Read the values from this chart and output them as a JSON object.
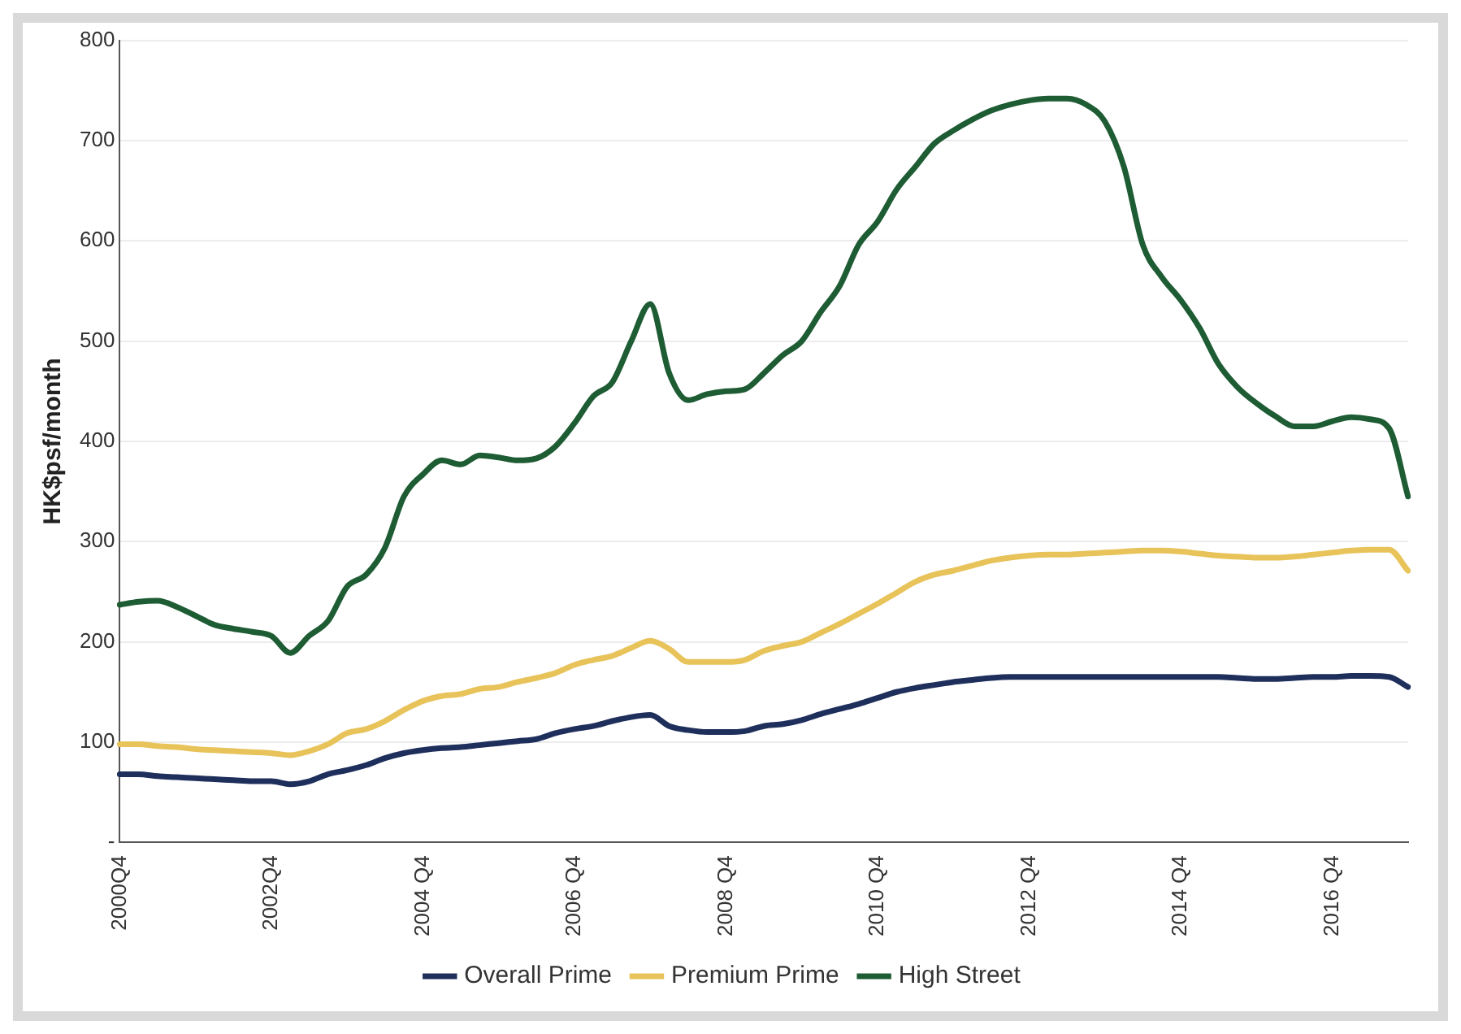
{
  "chart_data": {
    "type": "line",
    "ylabel": "HK$psf/month",
    "categories": [
      "2000Q4",
      null,
      null,
      null,
      null,
      null,
      null,
      null,
      "2002Q4",
      null,
      null,
      null,
      null,
      null,
      null,
      null,
      "2004 Q4",
      null,
      null,
      null,
      null,
      null,
      null,
      null,
      "2006 Q4",
      null,
      null,
      null,
      null,
      null,
      null,
      null,
      "2008 Q4",
      null,
      null,
      null,
      null,
      null,
      null,
      null,
      "2010 Q4",
      null,
      null,
      null,
      null,
      null,
      null,
      null,
      "2012 Q4",
      null,
      null,
      null,
      null,
      null,
      null,
      null,
      "2014 Q4",
      null,
      null,
      null,
      null,
      null,
      null,
      null,
      "2016 Q4",
      null,
      null,
      null,
      null
    ],
    "series": [
      {
        "name": "Overall Prime",
        "color": "#1f2f5c",
        "values": [
          68,
          68,
          66,
          65,
          64,
          63,
          62,
          61,
          61,
          58,
          61,
          68,
          72,
          77,
          84,
          89,
          92,
          94,
          95,
          97,
          99,
          101,
          103,
          109,
          113,
          116,
          121,
          125,
          127,
          116,
          112,
          110,
          110,
          111,
          116,
          118,
          122,
          128,
          133,
          138,
          144,
          150,
          154,
          157,
          160,
          162,
          164,
          165,
          165,
          165,
          165,
          165,
          165,
          165,
          165,
          165,
          165,
          165,
          165,
          164,
          163,
          163,
          164,
          165,
          165,
          166,
          166,
          165,
          155
        ]
      },
      {
        "name": "Premium Prime",
        "color": "#e8c35a",
        "values": [
          98,
          98,
          96,
          95,
          93,
          92,
          91,
          90,
          89,
          87,
          91,
          98,
          109,
          113,
          121,
          132,
          141,
          146,
          148,
          153,
          155,
          160,
          164,
          169,
          177,
          182,
          186,
          194,
          201,
          193,
          180,
          180,
          180,
          182,
          191,
          196,
          200,
          209,
          218,
          228,
          238,
          249,
          260,
          267,
          271,
          276,
          281,
          284,
          286,
          287,
          287,
          288,
          289,
          290,
          291,
          291,
          290,
          288,
          286,
          285,
          284,
          284,
          285,
          287,
          289,
          291,
          292,
          292,
          271
        ]
      },
      {
        "name": "High Street",
        "color": "#1e5c34",
        "values": [
          237,
          240,
          241,
          235,
          226,
          217,
          213,
          210,
          206,
          189,
          206,
          221,
          255,
          267,
          294,
          345,
          367,
          381,
          377,
          386,
          384,
          381,
          383,
          395,
          418,
          445,
          459,
          500,
          537,
          468,
          441,
          447,
          450,
          452,
          468,
          486,
          500,
          529,
          555,
          596,
          619,
          651,
          674,
          697,
          710,
          721,
          730,
          736,
          740,
          742,
          742,
          736,
          719,
          674,
          596,
          564,
          541,
          513,
          477,
          454,
          438,
          425,
          415,
          415,
          420,
          424,
          422,
          413,
          345
        ]
      }
    ],
    "ylim": [
      0,
      800
    ],
    "yticks": [
      {
        "value": 0,
        "label": "-"
      },
      100,
      200,
      300,
      400,
      500,
      600,
      700,
      800
    ],
    "grid": "y",
    "legend": "bottom",
    "marker": "none",
    "line_style": "solid"
  }
}
